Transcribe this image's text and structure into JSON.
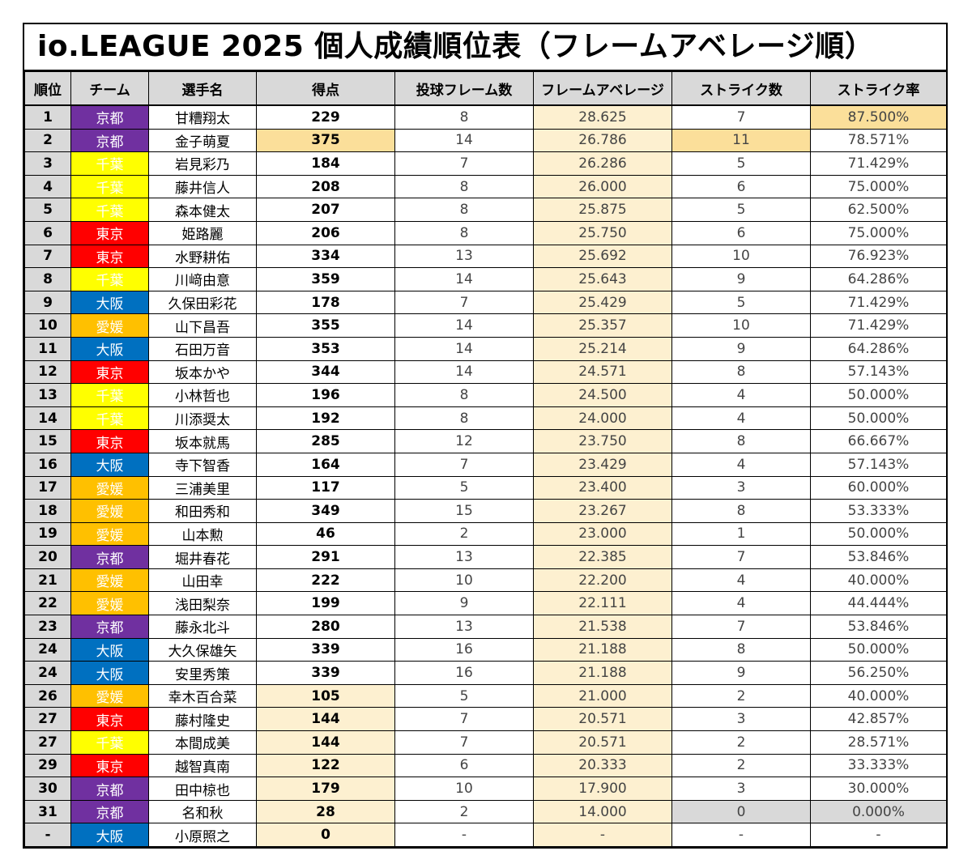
{
  "title": "io.LEAGUE  2025  個人成績順位表（フレームアベレージ順）",
  "team_colors": {
    "京都": {
      "bg": "#7030a0",
      "fg": "#ffffff"
    },
    "千葉": {
      "bg": "#ffff00",
      "fg": "#ffffff"
    },
    "東京": {
      "bg": "#ff0000",
      "fg": "#ffffff"
    },
    "大阪": {
      "bg": "#0070c0",
      "fg": "#ffffff"
    },
    "愛媛": {
      "bg": "#ffc000",
      "fg": "#ffffff"
    }
  },
  "columns": [
    "順位",
    "チーム",
    "選手名",
    "得点",
    "投球フレーム数",
    "フレームアベレージ",
    "ストライク数",
    "ストライク率"
  ],
  "rows": [
    {
      "rank": "1",
      "team": "京都",
      "name": "甘糟翔太",
      "points": "229",
      "frames": "8",
      "avg": "28.625",
      "strikes": "7",
      "rate": "87.500%"
    },
    {
      "rank": "2",
      "team": "京都",
      "name": "金子萌夏",
      "points": "375",
      "frames": "14",
      "avg": "26.786",
      "strikes": "11",
      "rate": "78.571%"
    },
    {
      "rank": "3",
      "team": "千葉",
      "name": "岩見彩乃",
      "points": "184",
      "frames": "7",
      "avg": "26.286",
      "strikes": "5",
      "rate": "71.429%"
    },
    {
      "rank": "4",
      "team": "千葉",
      "name": "藤井信人",
      "points": "208",
      "frames": "8",
      "avg": "26.000",
      "strikes": "6",
      "rate": "75.000%"
    },
    {
      "rank": "5",
      "team": "千葉",
      "name": "森本健太",
      "points": "207",
      "frames": "8",
      "avg": "25.875",
      "strikes": "5",
      "rate": "62.500%"
    },
    {
      "rank": "6",
      "team": "東京",
      "name": "姫路麗",
      "points": "206",
      "frames": "8",
      "avg": "25.750",
      "strikes": "6",
      "rate": "75.000%"
    },
    {
      "rank": "7",
      "team": "東京",
      "name": "水野耕佑",
      "points": "334",
      "frames": "13",
      "avg": "25.692",
      "strikes": "10",
      "rate": "76.923%"
    },
    {
      "rank": "8",
      "team": "千葉",
      "name": "川﨑由意",
      "points": "359",
      "frames": "14",
      "avg": "25.643",
      "strikes": "9",
      "rate": "64.286%"
    },
    {
      "rank": "9",
      "team": "大阪",
      "name": "久保田彩花",
      "points": "178",
      "frames": "7",
      "avg": "25.429",
      "strikes": "5",
      "rate": "71.429%"
    },
    {
      "rank": "10",
      "team": "愛媛",
      "name": "山下昌吾",
      "points": "355",
      "frames": "14",
      "avg": "25.357",
      "strikes": "10",
      "rate": "71.429%"
    },
    {
      "rank": "11",
      "team": "大阪",
      "name": "石田万音",
      "points": "353",
      "frames": "14",
      "avg": "25.214",
      "strikes": "9",
      "rate": "64.286%"
    },
    {
      "rank": "12",
      "team": "東京",
      "name": "坂本かや",
      "points": "344",
      "frames": "14",
      "avg": "24.571",
      "strikes": "8",
      "rate": "57.143%"
    },
    {
      "rank": "13",
      "team": "千葉",
      "name": "小林哲也",
      "points": "196",
      "frames": "8",
      "avg": "24.500",
      "strikes": "4",
      "rate": "50.000%"
    },
    {
      "rank": "14",
      "team": "千葉",
      "name": "川添奨太",
      "points": "192",
      "frames": "8",
      "avg": "24.000",
      "strikes": "4",
      "rate": "50.000%"
    },
    {
      "rank": "15",
      "team": "東京",
      "name": "坂本就馬",
      "points": "285",
      "frames": "12",
      "avg": "23.750",
      "strikes": "8",
      "rate": "66.667%"
    },
    {
      "rank": "16",
      "team": "大阪",
      "name": "寺下智香",
      "points": "164",
      "frames": "7",
      "avg": "23.429",
      "strikes": "4",
      "rate": "57.143%"
    },
    {
      "rank": "17",
      "team": "愛媛",
      "name": "三浦美里",
      "points": "117",
      "frames": "5",
      "avg": "23.400",
      "strikes": "3",
      "rate": "60.000%"
    },
    {
      "rank": "18",
      "team": "愛媛",
      "name": "和田秀和",
      "points": "349",
      "frames": "15",
      "avg": "23.267",
      "strikes": "8",
      "rate": "53.333%"
    },
    {
      "rank": "19",
      "team": "愛媛",
      "name": "山本勲",
      "points": "46",
      "frames": "2",
      "avg": "23.000",
      "strikes": "1",
      "rate": "50.000%"
    },
    {
      "rank": "20",
      "team": "京都",
      "name": "堀井春花",
      "points": "291",
      "frames": "13",
      "avg": "22.385",
      "strikes": "7",
      "rate": "53.846%"
    },
    {
      "rank": "21",
      "team": "愛媛",
      "name": "山田幸",
      "points": "222",
      "frames": "10",
      "avg": "22.200",
      "strikes": "4",
      "rate": "40.000%"
    },
    {
      "rank": "22",
      "team": "愛媛",
      "name": "浅田梨奈",
      "points": "199",
      "frames": "9",
      "avg": "22.111",
      "strikes": "4",
      "rate": "44.444%"
    },
    {
      "rank": "23",
      "team": "京都",
      "name": "藤永北斗",
      "points": "280",
      "frames": "13",
      "avg": "21.538",
      "strikes": "7",
      "rate": "53.846%"
    },
    {
      "rank": "24",
      "team": "大阪",
      "name": "大久保雄矢",
      "points": "339",
      "frames": "16",
      "avg": "21.188",
      "strikes": "8",
      "rate": "50.000%"
    },
    {
      "rank": "24",
      "team": "大阪",
      "name": "安里秀策",
      "points": "339",
      "frames": "16",
      "avg": "21.188",
      "strikes": "9",
      "rate": "56.250%"
    },
    {
      "rank": "26",
      "team": "愛媛",
      "name": "幸木百合菜",
      "points": "105",
      "frames": "5",
      "avg": "21.000",
      "strikes": "2",
      "rate": "40.000%"
    },
    {
      "rank": "27",
      "team": "東京",
      "name": "藤村隆史",
      "points": "144",
      "frames": "7",
      "avg": "20.571",
      "strikes": "3",
      "rate": "42.857%"
    },
    {
      "rank": "27",
      "team": "千葉",
      "name": "本間成美",
      "points": "144",
      "frames": "7",
      "avg": "20.571",
      "strikes": "2",
      "rate": "28.571%"
    },
    {
      "rank": "29",
      "team": "東京",
      "name": "越智真南",
      "points": "122",
      "frames": "6",
      "avg": "20.333",
      "strikes": "2",
      "rate": "33.333%"
    },
    {
      "rank": "30",
      "team": "京都",
      "name": "田中椋也",
      "points": "179",
      "frames": "10",
      "avg": "17.900",
      "strikes": "3",
      "rate": "30.000%"
    },
    {
      "rank": "31",
      "team": "京都",
      "name": "名和秋",
      "points": "28",
      "frames": "2",
      "avg": "14.000",
      "strikes": "0",
      "rate": "0.000%"
    },
    {
      "rank": "-",
      "team": "大阪",
      "name": "小原照之",
      "points": "0",
      "frames": "-",
      "avg": "-",
      "strikes": "-",
      "rate": "-"
    }
  ],
  "highlights": {
    "points_top": [
      1
    ],
    "points_low": [
      25,
      26,
      27,
      28,
      29,
      30,
      31
    ],
    "strikes_top": [
      1
    ],
    "strikes_zero": [
      30
    ],
    "rate_top": [
      0
    ],
    "rate_zero": [
      30
    ]
  }
}
